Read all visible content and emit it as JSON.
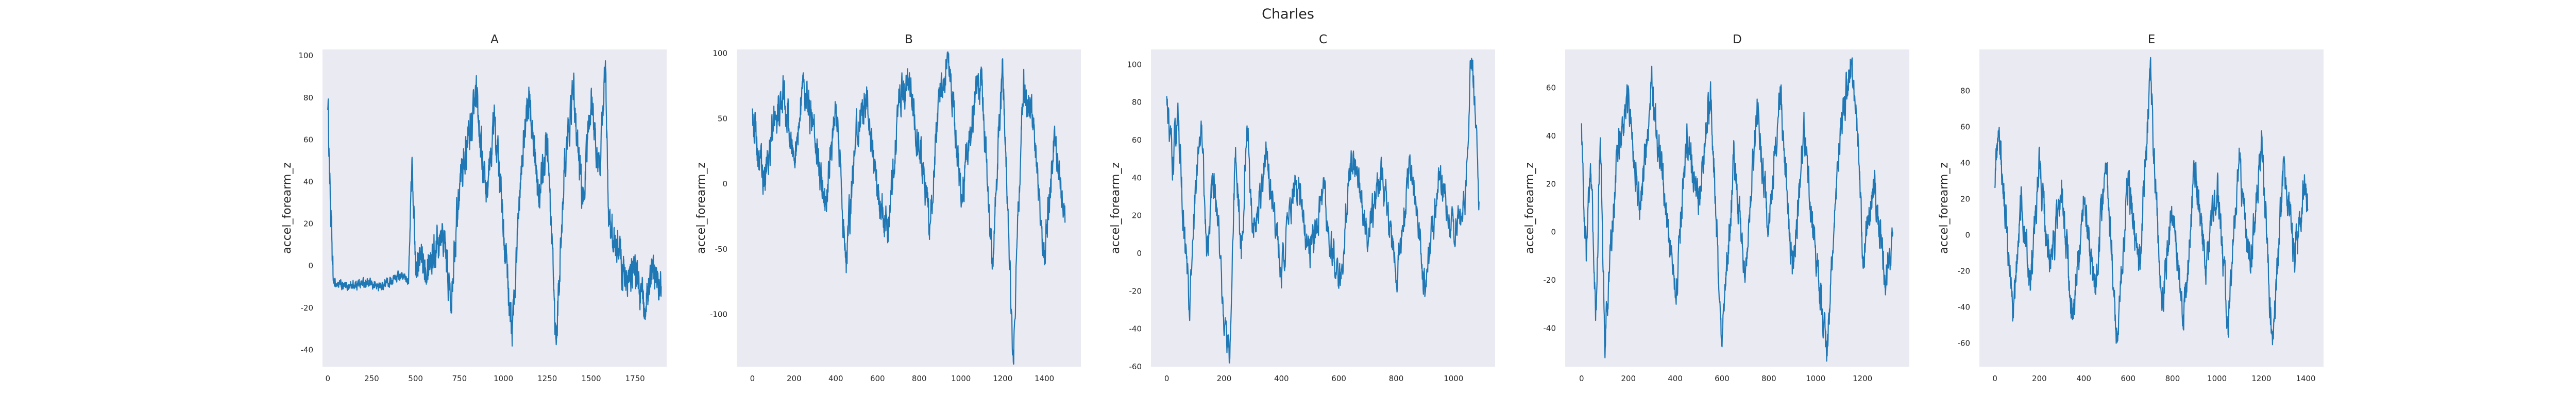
{
  "figure": {
    "suptitle": "Charles"
  },
  "chart_data": [
    {
      "type": "line",
      "title": "A",
      "xlabel": "",
      "ylabel": "accel_forearm_z",
      "xlim": [
        -30,
        1930
      ],
      "ylim": [
        -48,
        103
      ],
      "xticks": [
        0,
        250,
        500,
        750,
        1000,
        1250,
        1500,
        1750
      ],
      "yticks": [
        -40,
        -20,
        0,
        20,
        40,
        60,
        80,
        100
      ],
      "n": 1900,
      "grid": false,
      "series": [
        {
          "color": "#1f77b4",
          "keypoints": [
            [
              0,
              80
            ],
            [
              15,
              30
            ],
            [
              30,
              -8
            ],
            [
              100,
              -10
            ],
            [
              200,
              -8
            ],
            [
              300,
              -10
            ],
            [
              400,
              -5
            ],
            [
              460,
              -6
            ],
            [
              480,
              50
            ],
            [
              500,
              0
            ],
            [
              600,
              5
            ],
            [
              650,
              20
            ],
            [
              700,
              -15
            ],
            [
              750,
              40
            ],
            [
              800,
              60
            ],
            [
              850,
              80
            ],
            [
              900,
              30
            ],
            [
              950,
              70
            ],
            [
              1000,
              20
            ],
            [
              1050,
              -35
            ],
            [
              1100,
              50
            ],
            [
              1150,
              80
            ],
            [
              1200,
              30
            ],
            [
              1250,
              60
            ],
            [
              1300,
              -40
            ],
            [
              1350,
              50
            ],
            [
              1400,
              85
            ],
            [
              1450,
              30
            ],
            [
              1500,
              80
            ],
            [
              1550,
              40
            ],
            [
              1580,
              97
            ],
            [
              1600,
              20
            ],
            [
              1650,
              10
            ],
            [
              1700,
              -10
            ],
            [
              1750,
              0
            ],
            [
              1800,
              -20
            ],
            [
              1850,
              -5
            ],
            [
              1900,
              -10
            ]
          ]
        }
      ]
    },
    {
      "type": "line",
      "title": "B",
      "xlabel": "",
      "ylabel": "accel_forearm_z",
      "xlim": [
        -75,
        1575
      ],
      "ylim": [
        -140,
        103
      ],
      "xticks": [
        0,
        200,
        400,
        600,
        800,
        1000,
        1200,
        1400
      ],
      "yticks": [
        -100,
        -50,
        0,
        50,
        100
      ],
      "n": 1500,
      "grid": false,
      "series": [
        {
          "color": "#1f77b4",
          "keypoints": [
            [
              0,
              55
            ],
            [
              50,
              0
            ],
            [
              100,
              40
            ],
            [
              150,
              70
            ],
            [
              200,
              20
            ],
            [
              250,
              75
            ],
            [
              300,
              40
            ],
            [
              350,
              -20
            ],
            [
              400,
              60
            ],
            [
              450,
              -60
            ],
            [
              500,
              40
            ],
            [
              550,
              70
            ],
            [
              600,
              -10
            ],
            [
              650,
              -40
            ],
            [
              700,
              60
            ],
            [
              750,
              80
            ],
            [
              800,
              30
            ],
            [
              850,
              -30
            ],
            [
              900,
              70
            ],
            [
              950,
              90
            ],
            [
              1000,
              -10
            ],
            [
              1050,
              50
            ],
            [
              1100,
              80
            ],
            [
              1150,
              -60
            ],
            [
              1200,
              90
            ],
            [
              1250,
              -135
            ],
            [
              1300,
              80
            ],
            [
              1350,
              40
            ],
            [
              1400,
              -60
            ],
            [
              1450,
              40
            ],
            [
              1500,
              -30
            ]
          ]
        }
      ]
    },
    {
      "type": "line",
      "title": "C",
      "xlabel": "",
      "ylabel": "accel_forearm_z",
      "xlim": [
        -55,
        1145
      ],
      "ylim": [
        -60,
        108
      ],
      "xticks": [
        0,
        200,
        400,
        600,
        800,
        1000
      ],
      "yticks": [
        -60,
        -40,
        -20,
        0,
        20,
        40,
        60,
        80,
        100
      ],
      "n": 1090,
      "grid": false,
      "series": [
        {
          "color": "#1f77b4",
          "keypoints": [
            [
              0,
              80
            ],
            [
              20,
              50
            ],
            [
              40,
              70
            ],
            [
              60,
              10
            ],
            [
              80,
              -30
            ],
            [
              100,
              30
            ],
            [
              120,
              70
            ],
            [
              140,
              0
            ],
            [
              160,
              40
            ],
            [
              180,
              20
            ],
            [
              200,
              -40
            ],
            [
              220,
              -55
            ],
            [
              240,
              60
            ],
            [
              260,
              0
            ],
            [
              280,
              70
            ],
            [
              300,
              10
            ],
            [
              350,
              50
            ],
            [
              400,
              -10
            ],
            [
              450,
              40
            ],
            [
              500,
              0
            ],
            [
              550,
              30
            ],
            [
              600,
              -20
            ],
            [
              650,
              55
            ],
            [
              700,
              10
            ],
            [
              750,
              40
            ],
            [
              800,
              -10
            ],
            [
              850,
              50
            ],
            [
              900,
              -20
            ],
            [
              950,
              40
            ],
            [
              1000,
              10
            ],
            [
              1040,
              30
            ],
            [
              1060,
              100
            ],
            [
              1075,
              80
            ],
            [
              1090,
              20
            ]
          ]
        }
      ]
    },
    {
      "type": "line",
      "title": "D",
      "xlabel": "",
      "ylabel": "accel_forearm_z",
      "xlim": [
        -70,
        1400
      ],
      "ylim": [
        -56,
        76
      ],
      "xticks": [
        0,
        200,
        400,
        600,
        800,
        1000,
        1200
      ],
      "yticks": [
        -40,
        -20,
        0,
        20,
        40,
        60
      ],
      "n": 1330,
      "grid": false,
      "series": [
        {
          "color": "#1f77b4",
          "keypoints": [
            [
              0,
              40
            ],
            [
              20,
              -10
            ],
            [
              40,
              30
            ],
            [
              60,
              -40
            ],
            [
              80,
              40
            ],
            [
              100,
              -45
            ],
            [
              150,
              30
            ],
            [
              200,
              55
            ],
            [
              250,
              10
            ],
            [
              300,
              60
            ],
            [
              350,
              20
            ],
            [
              400,
              -30
            ],
            [
              450,
              40
            ],
            [
              500,
              10
            ],
            [
              550,
              60
            ],
            [
              600,
              -48
            ],
            [
              650,
              30
            ],
            [
              700,
              -20
            ],
            [
              750,
              50
            ],
            [
              800,
              0
            ],
            [
              850,
              60
            ],
            [
              900,
              -20
            ],
            [
              950,
              40
            ],
            [
              1000,
              -10
            ],
            [
              1050,
              -48
            ],
            [
              1100,
              40
            ],
            [
              1150,
              70
            ],
            [
              1180,
              40
            ],
            [
              1200,
              -10
            ],
            [
              1250,
              20
            ],
            [
              1300,
              -20
            ],
            [
              1330,
              0
            ]
          ]
        }
      ]
    },
    {
      "type": "line",
      "title": "E",
      "xlabel": "",
      "ylabel": "accel_forearm_z",
      "xlim": [
        -70,
        1480
      ],
      "ylim": [
        -73,
        103
      ],
      "xticks": [
        0,
        200,
        400,
        600,
        800,
        1000,
        1200,
        1400
      ],
      "yticks": [
        -60,
        -40,
        -20,
        0,
        20,
        40,
        60,
        80
      ],
      "n": 1410,
      "grid": false,
      "series": [
        {
          "color": "#1f77b4",
          "keypoints": [
            [
              0,
              30
            ],
            [
              20,
              55
            ],
            [
              40,
              20
            ],
            [
              60,
              -10
            ],
            [
              80,
              -40
            ],
            [
              120,
              20
            ],
            [
              160,
              -30
            ],
            [
              200,
              40
            ],
            [
              250,
              -20
            ],
            [
              300,
              30
            ],
            [
              350,
              -50
            ],
            [
              400,
              20
            ],
            [
              450,
              -30
            ],
            [
              500,
              40
            ],
            [
              550,
              -60
            ],
            [
              600,
              30
            ],
            [
              650,
              -20
            ],
            [
              700,
              90
            ],
            [
              750,
              -40
            ],
            [
              800,
              20
            ],
            [
              850,
              -50
            ],
            [
              900,
              40
            ],
            [
              950,
              -20
            ],
            [
              1000,
              30
            ],
            [
              1050,
              -50
            ],
            [
              1100,
              40
            ],
            [
              1150,
              -20
            ],
            [
              1200,
              50
            ],
            [
              1250,
              -60
            ],
            [
              1300,
              40
            ],
            [
              1350,
              -10
            ],
            [
              1400,
              30
            ],
            [
              1410,
              10
            ]
          ]
        }
      ]
    }
  ]
}
